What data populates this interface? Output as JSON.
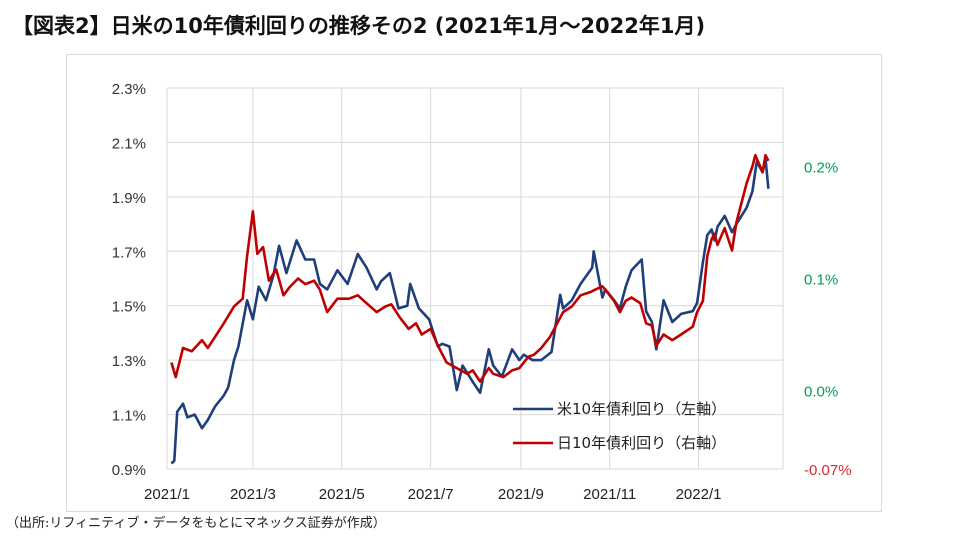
{
  "title": "【図表2】日米の10年債利回りの推移その2 (2021年1月～2022年1月)",
  "source": "（出所:リフィニティブ・データをもとにマネックス証券が作成）",
  "colors": {
    "us": "#1f3f7a",
    "jp": "#c00000",
    "right_axis_pos": "#00a050",
    "right_axis_neg": "#e0282c",
    "grid": "#d9d9d9",
    "axis_text": "#333333"
  },
  "chart_data": {
    "type": "line",
    "title": "",
    "xlabel": "",
    "ylabel": "",
    "x_ticks": [
      "2021/1",
      "2021/3",
      "2021/5",
      "2021/7",
      "2021/9",
      "2021/11",
      "2022/1"
    ],
    "left_axis": {
      "ylim": [
        0.9,
        2.3
      ],
      "ticks": [
        "0.9%",
        "1.1%",
        "1.3%",
        "1.5%",
        "1.7%",
        "1.9%",
        "2.1%",
        "2.3%"
      ]
    },
    "right_axis": {
      "ylim": [
        -0.07,
        0.27
      ],
      "ticks": [
        {
          "value": 0.2,
          "label": "0.2%"
        },
        {
          "value": 0.1,
          "label": "0.1%"
        },
        {
          "value": 0.0,
          "label": "0.0%"
        },
        {
          "value": -0.07,
          "label": "-0.07%"
        }
      ]
    },
    "grid": true,
    "legend_position": "lower-right",
    "series": [
      {
        "name": "米10年債利回り（左軸）",
        "axis": "left",
        "points": [
          [
            "2021-01-04",
            0.92
          ],
          [
            "2021-01-06",
            0.93
          ],
          [
            "2021-01-08",
            1.11
          ],
          [
            "2021-01-12",
            1.14
          ],
          [
            "2021-01-15",
            1.09
          ],
          [
            "2021-01-20",
            1.1
          ],
          [
            "2021-01-25",
            1.05
          ],
          [
            "2021-01-29",
            1.08
          ],
          [
            "2021-02-03",
            1.13
          ],
          [
            "2021-02-09",
            1.17
          ],
          [
            "2021-02-12",
            1.2
          ],
          [
            "2021-02-16",
            1.3
          ],
          [
            "2021-02-19",
            1.35
          ],
          [
            "2021-02-25",
            1.52
          ],
          [
            "2021-03-01",
            1.45
          ],
          [
            "2021-03-05",
            1.57
          ],
          [
            "2021-03-10",
            1.52
          ],
          [
            "2021-03-15",
            1.61
          ],
          [
            "2021-03-19",
            1.72
          ],
          [
            "2021-03-24",
            1.62
          ],
          [
            "2021-03-31",
            1.74
          ],
          [
            "2021-04-06",
            1.67
          ],
          [
            "2021-04-12",
            1.67
          ],
          [
            "2021-04-16",
            1.58
          ],
          [
            "2021-04-21",
            1.56
          ],
          [
            "2021-04-28",
            1.63
          ],
          [
            "2021-05-05",
            1.58
          ],
          [
            "2021-05-12",
            1.69
          ],
          [
            "2021-05-18",
            1.64
          ],
          [
            "2021-05-25",
            1.56
          ],
          [
            "2021-05-28",
            1.59
          ],
          [
            "2021-06-03",
            1.62
          ],
          [
            "2021-06-09",
            1.49
          ],
          [
            "2021-06-15",
            1.5
          ],
          [
            "2021-06-17",
            1.58
          ],
          [
            "2021-06-23",
            1.49
          ],
          [
            "2021-06-30",
            1.45
          ],
          [
            "2021-07-06",
            1.35
          ],
          [
            "2021-07-09",
            1.36
          ],
          [
            "2021-07-14",
            1.35
          ],
          [
            "2021-07-19",
            1.19
          ],
          [
            "2021-07-23",
            1.28
          ],
          [
            "2021-07-30",
            1.22
          ],
          [
            "2021-08-04",
            1.18
          ],
          [
            "2021-08-10",
            1.34
          ],
          [
            "2021-08-13",
            1.28
          ],
          [
            "2021-08-19",
            1.24
          ],
          [
            "2021-08-26",
            1.34
          ],
          [
            "2021-08-31",
            1.3
          ],
          [
            "2021-09-03",
            1.32
          ],
          [
            "2021-09-09",
            1.3
          ],
          [
            "2021-09-15",
            1.3
          ],
          [
            "2021-09-22",
            1.33
          ],
          [
            "2021-09-28",
            1.54
          ],
          [
            "2021-09-30",
            1.49
          ],
          [
            "2021-10-06",
            1.52
          ],
          [
            "2021-10-12",
            1.58
          ],
          [
            "2021-10-20",
            1.64
          ],
          [
            "2021-10-21",
            1.7
          ],
          [
            "2021-10-27",
            1.53
          ],
          [
            "2021-10-29",
            1.56
          ],
          [
            "2021-11-04",
            1.52
          ],
          [
            "2021-11-08",
            1.49
          ],
          [
            "2021-11-12",
            1.57
          ],
          [
            "2021-11-16",
            1.63
          ],
          [
            "2021-11-23",
            1.67
          ],
          [
            "2021-11-26",
            1.48
          ],
          [
            "2021-11-30",
            1.44
          ],
          [
            "2021-12-03",
            1.34
          ],
          [
            "2021-12-08",
            1.52
          ],
          [
            "2021-12-14",
            1.44
          ],
          [
            "2021-12-20",
            1.47
          ],
          [
            "2021-12-28",
            1.48
          ],
          [
            "2021-12-31",
            1.51
          ],
          [
            "2022-01-04",
            1.66
          ],
          [
            "2022-01-07",
            1.76
          ],
          [
            "2022-01-10",
            1.78
          ],
          [
            "2022-01-12",
            1.74
          ],
          [
            "2022-01-14",
            1.79
          ],
          [
            "2022-01-19",
            1.83
          ],
          [
            "2022-01-24",
            1.77
          ],
          [
            "2022-01-27",
            1.8
          ],
          [
            "2022-02-03",
            1.86
          ],
          [
            "2022-02-07",
            1.92
          ],
          [
            "2022-02-10",
            2.03
          ],
          [
            "2022-02-14",
            1.99
          ],
          [
            "2022-02-16",
            2.04
          ],
          [
            "2022-02-18",
            1.93
          ]
        ]
      },
      {
        "name": "日10年債利回り（右軸）",
        "axis": "right",
        "points": [
          [
            "2021-01-04",
            0.025
          ],
          [
            "2021-01-07",
            0.012
          ],
          [
            "2021-01-12",
            0.038
          ],
          [
            "2021-01-18",
            0.035
          ],
          [
            "2021-01-25",
            0.045
          ],
          [
            "2021-01-29",
            0.038
          ],
          [
            "2021-02-03",
            0.048
          ],
          [
            "2021-02-09",
            0.06
          ],
          [
            "2021-02-16",
            0.075
          ],
          [
            "2021-02-22",
            0.082
          ],
          [
            "2021-02-25",
            0.12
          ],
          [
            "2021-03-01",
            0.16
          ],
          [
            "2021-03-04",
            0.122
          ],
          [
            "2021-03-08",
            0.128
          ],
          [
            "2021-03-12",
            0.098
          ],
          [
            "2021-03-17",
            0.108
          ],
          [
            "2021-03-22",
            0.085
          ],
          [
            "2021-03-26",
            0.092
          ],
          [
            "2021-04-01",
            0.1
          ],
          [
            "2021-04-06",
            0.095
          ],
          [
            "2021-04-12",
            0.098
          ],
          [
            "2021-04-16",
            0.09
          ],
          [
            "2021-04-21",
            0.07
          ],
          [
            "2021-04-28",
            0.082
          ],
          [
            "2021-05-06",
            0.082
          ],
          [
            "2021-05-12",
            0.085
          ],
          [
            "2021-05-18",
            0.078
          ],
          [
            "2021-05-25",
            0.07
          ],
          [
            "2021-05-31",
            0.075
          ],
          [
            "2021-06-04",
            0.077
          ],
          [
            "2021-06-10",
            0.065
          ],
          [
            "2021-06-16",
            0.055
          ],
          [
            "2021-06-21",
            0.06
          ],
          [
            "2021-06-25",
            0.05
          ],
          [
            "2021-07-01",
            0.055
          ],
          [
            "2021-07-06",
            0.04
          ],
          [
            "2021-07-12",
            0.025
          ],
          [
            "2021-07-19",
            0.02
          ],
          [
            "2021-07-26",
            0.015
          ],
          [
            "2021-07-30",
            0.018
          ],
          [
            "2021-08-04",
            0.008
          ],
          [
            "2021-08-10",
            0.02
          ],
          [
            "2021-08-13",
            0.015
          ],
          [
            "2021-08-20",
            0.012
          ],
          [
            "2021-08-26",
            0.018
          ],
          [
            "2021-08-31",
            0.02
          ],
          [
            "2021-09-06",
            0.03
          ],
          [
            "2021-09-10",
            0.032
          ],
          [
            "2021-09-15",
            0.038
          ],
          [
            "2021-09-21",
            0.048
          ],
          [
            "2021-09-28",
            0.065
          ],
          [
            "2021-09-30",
            0.07
          ],
          [
            "2021-10-06",
            0.075
          ],
          [
            "2021-10-12",
            0.085
          ],
          [
            "2021-10-19",
            0.088
          ],
          [
            "2021-10-22",
            0.09
          ],
          [
            "2021-10-27",
            0.093
          ],
          [
            "2021-10-29",
            0.09
          ],
          [
            "2021-11-04",
            0.08
          ],
          [
            "2021-11-08",
            0.07
          ],
          [
            "2021-11-12",
            0.08
          ],
          [
            "2021-11-16",
            0.083
          ],
          [
            "2021-11-22",
            0.078
          ],
          [
            "2021-11-26",
            0.06
          ],
          [
            "2021-11-30",
            0.058
          ],
          [
            "2021-12-03",
            0.04
          ],
          [
            "2021-12-08",
            0.05
          ],
          [
            "2021-12-14",
            0.045
          ],
          [
            "2021-12-20",
            0.05
          ],
          [
            "2021-12-28",
            0.057
          ],
          [
            "2021-12-31",
            0.07
          ],
          [
            "2022-01-04",
            0.08
          ],
          [
            "2022-01-07",
            0.12
          ],
          [
            "2022-01-10",
            0.135
          ],
          [
            "2022-01-12",
            0.14
          ],
          [
            "2022-01-14",
            0.13
          ],
          [
            "2022-01-19",
            0.145
          ],
          [
            "2022-01-24",
            0.125
          ],
          [
            "2022-01-27",
            0.15
          ],
          [
            "2022-02-03",
            0.185
          ],
          [
            "2022-02-07",
            0.2
          ],
          [
            "2022-02-09",
            0.21
          ],
          [
            "2022-02-14",
            0.195
          ],
          [
            "2022-02-16",
            0.21
          ],
          [
            "2022-02-18",
            0.205
          ]
        ]
      }
    ]
  }
}
